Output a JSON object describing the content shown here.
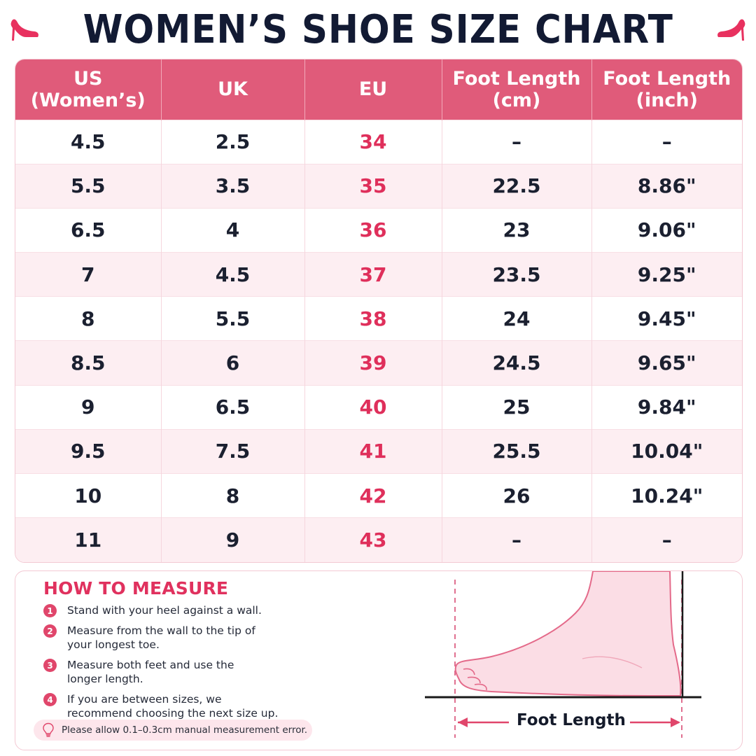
{
  "title": "WOMEN’S SHOE SIZE CHART",
  "icons": {
    "title_left": "high-heel-icon",
    "title_right": "high-heel-icon",
    "note": "lightbulb-icon"
  },
  "colors": {
    "header_bg": "#e05b7a",
    "eu_text": "#df2f5b",
    "accent": "#e0315e",
    "stripe": "#fdeef2"
  },
  "table": {
    "headers": [
      {
        "line1": "US",
        "line2": "(Women’s)"
      },
      {
        "line1": "UK",
        "line2": ""
      },
      {
        "line1": "EU",
        "line2": ""
      },
      {
        "line1": "Foot Length",
        "line2": "(cm)"
      },
      {
        "line1": "Foot Length",
        "line2": "(inch)"
      }
    ],
    "rows": [
      [
        "4.5",
        "2.5",
        "34",
        "–",
        "–"
      ],
      [
        "5.5",
        "3.5",
        "35",
        "22.5",
        "8.86\""
      ],
      [
        "6.5",
        "4",
        "36",
        "23",
        "9.06\""
      ],
      [
        "7",
        "4.5",
        "37",
        "23.5",
        "9.25\""
      ],
      [
        "8",
        "5.5",
        "38",
        "24",
        "9.45\""
      ],
      [
        "8.5",
        "6",
        "39",
        "24.5",
        "9.65\""
      ],
      [
        "9",
        "6.5",
        "40",
        "25",
        "9.84\""
      ],
      [
        "9.5",
        "7.5",
        "41",
        "25.5",
        "10.04\""
      ],
      [
        "10",
        "8",
        "42",
        "26",
        "10.24\""
      ],
      [
        "11",
        "9",
        "43",
        "–",
        "–"
      ]
    ]
  },
  "measure": {
    "heading": "HOW TO MEASURE",
    "steps": [
      {
        "num": "1",
        "lines": [
          "Stand with your heel against a wall."
        ]
      },
      {
        "num": "2",
        "lines": [
          "Measure from the wall to the tip of",
          "your longest toe."
        ]
      },
      {
        "num": "3",
        "lines": [
          "Measure both feet and use the",
          "longer length."
        ]
      },
      {
        "num": "4",
        "lines": [
          "If you are between sizes, we",
          "recommend choosing the next size up."
        ]
      }
    ],
    "note": "Please allow 0.1–0.3cm manual measurement error.",
    "diagram_label": "Foot Length"
  }
}
